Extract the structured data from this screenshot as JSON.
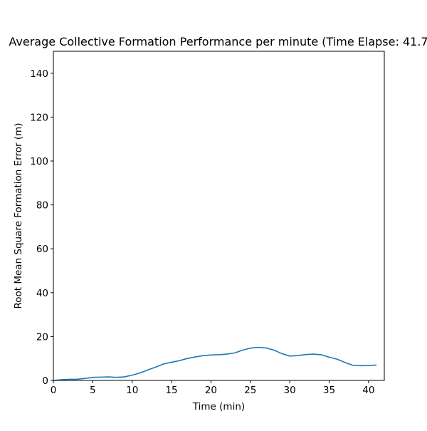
{
  "chart_data": {
    "type": "line",
    "title": "Average Collective Formation Performance per minute (Time Elapse: 41.7",
    "xlabel": "Time (min)",
    "ylabel": "Root Mean Square Formation Error (m)",
    "xlim": [
      0,
      42
    ],
    "ylim": [
      0,
      150
    ],
    "xticks": [
      0,
      5,
      10,
      15,
      20,
      25,
      30,
      35,
      40
    ],
    "yticks": [
      0,
      20,
      40,
      60,
      80,
      100,
      120,
      140
    ],
    "grid": false,
    "colors": {
      "line": "#1f77b4",
      "axes": "#000000",
      "background": "#ffffff"
    },
    "series": [
      {
        "x": [
          0,
          1,
          2,
          3,
          4,
          5,
          6,
          7,
          8,
          9,
          10,
          11,
          12,
          13,
          14,
          15,
          16,
          17,
          18,
          19,
          20,
          21,
          22,
          23,
          24,
          25,
          26,
          27,
          28,
          29,
          30,
          31,
          32,
          33,
          34,
          35,
          36,
          37,
          38,
          39,
          40,
          41
        ],
        "y": [
          0.0,
          0.3,
          0.5,
          0.5,
          0.9,
          1.4,
          1.5,
          1.6,
          1.4,
          1.6,
          2.4,
          3.4,
          4.8,
          6.1,
          7.5,
          8.3,
          9.0,
          10.0,
          10.7,
          11.3,
          11.6,
          11.7,
          12.0,
          12.5,
          13.8,
          14.7,
          15.1,
          14.8,
          13.8,
          12.2,
          11.1,
          11.3,
          11.8,
          12.0,
          11.7,
          10.6,
          9.7,
          8.2,
          6.9,
          6.7,
          6.8,
          7.0
        ]
      }
    ]
  }
}
